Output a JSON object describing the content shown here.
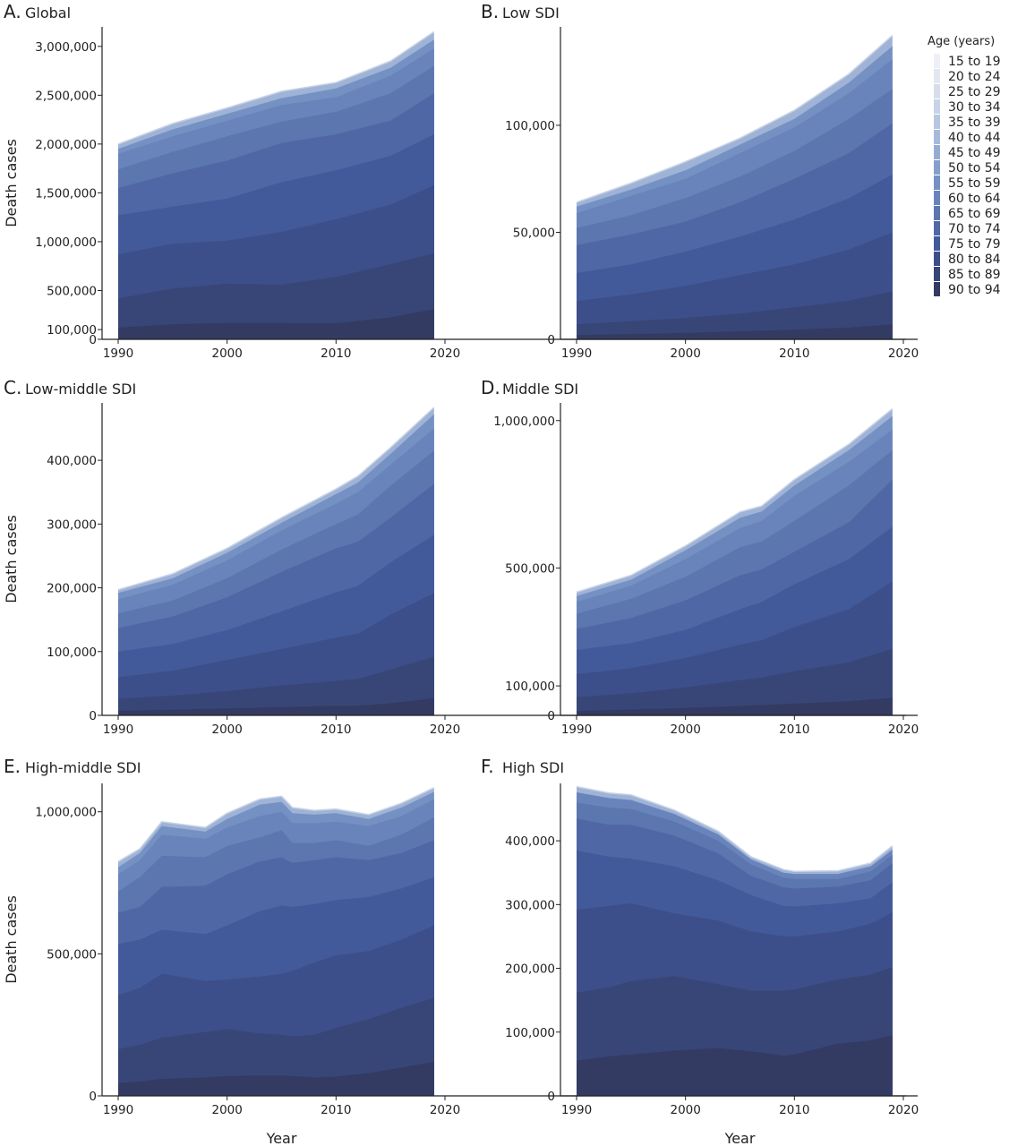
{
  "figure": {
    "x_axis_title": "Year",
    "y_axis_title": "Death cases",
    "legend": {
      "title": "Age (years)",
      "placement": "top-right",
      "entries": [
        {
          "label": "15 to 19",
          "color": "#eef0f6"
        },
        {
          "label": "20 to 24",
          "color": "#e2e7f1"
        },
        {
          "label": "25 to 29",
          "color": "#d6deec"
        },
        {
          "label": "30 to 34",
          "color": "#c8d3e7"
        },
        {
          "label": "35 to 39",
          "color": "#b8c7e0"
        },
        {
          "label": "40 to 44",
          "color": "#a8bad9"
        },
        {
          "label": "45 to 49",
          "color": "#97acd2"
        },
        {
          "label": "50 to 54",
          "color": "#869fca"
        },
        {
          "label": "55 to 59",
          "color": "#7591c3"
        },
        {
          "label": "60 to 64",
          "color": "#6984bb"
        },
        {
          "label": "65 to 69",
          "color": "#5c76b0"
        },
        {
          "label": "70 to 74",
          "color": "#4f68a5"
        },
        {
          "label": "75 to 79",
          "color": "#435a9a"
        },
        {
          "label": "80 to 84",
          "color": "#3d4f8a"
        },
        {
          "label": "85 to 89",
          "color": "#384677"
        },
        {
          "label": "90 to 94",
          "color": "#333b63"
        }
      ]
    }
  },
  "chart_data": [
    {
      "type": "area",
      "stacked": true,
      "letter": "A.",
      "title": "Global",
      "xlabel": "",
      "ylabel": "Death cases",
      "x": [
        1990,
        1995,
        2000,
        2005,
        2010,
        2015,
        2019
      ],
      "xlim": [
        1989,
        2020.5
      ],
      "xticks": [
        "1990",
        "2000",
        "2010",
        "2020"
      ],
      "ylim": [
        0,
        3200000
      ],
      "yticks": [
        {
          "v": 0,
          "label": "0"
        },
        {
          "v": 100000,
          "label": "100,000"
        },
        {
          "v": 500000,
          "label": "500,000"
        },
        {
          "v": 1000000,
          "label": "1,000,000"
        },
        {
          "v": 1500000,
          "label": "1,500,000"
        },
        {
          "v": 2000000,
          "label": "2,000,000"
        },
        {
          "v": 2500000,
          "label": "2,500,000"
        },
        {
          "v": 3000000,
          "label": "3,000,000"
        }
      ],
      "totals": [
        2000000,
        2210000,
        2370000,
        2540000,
        2630000,
        2850000,
        3150000
      ],
      "cumulative_boundaries": {
        "90 to 94": [
          120000,
          155000,
          170000,
          170000,
          165000,
          225000,
          310000
        ],
        "85 to 89": [
          420000,
          520000,
          570000,
          560000,
          640000,
          770000,
          880000
        ],
        "80 to 84": [
          870000,
          980000,
          1010000,
          1100000,
          1230000,
          1380000,
          1580000
        ],
        "75 to 79": [
          1270000,
          1360000,
          1440000,
          1610000,
          1730000,
          1880000,
          2100000
        ],
        "70 to 74": [
          1550000,
          1700000,
          1830000,
          2010000,
          2100000,
          2240000,
          2520000
        ],
        "65 to 69": [
          1740000,
          1920000,
          2080000,
          2230000,
          2330000,
          2520000,
          2800000
        ],
        "60 to 64": [
          1900000,
          2080000,
          2240000,
          2400000,
          2480000,
          2700000,
          2980000
        ],
        "55 to 59": [
          1950000,
          2150000,
          2310000,
          2470000,
          2570000,
          2780000,
          3070000
        ],
        "top": [
          2000000,
          2210000,
          2370000,
          2540000,
          2630000,
          2850000,
          3150000
        ]
      }
    },
    {
      "type": "area",
      "stacked": true,
      "letter": "B.",
      "title": "Low SDI",
      "xlabel": "",
      "ylabel": "",
      "x": [
        1990,
        1995,
        2000,
        2005,
        2010,
        2015,
        2019
      ],
      "xlim": [
        1989,
        2020.5
      ],
      "xticks": [
        "1990",
        "2000",
        "2010",
        "2020"
      ],
      "ylim": [
        0,
        146000
      ],
      "yticks": [
        {
          "v": 0,
          "label": "0"
        },
        {
          "v": 50000,
          "label": "50,000"
        },
        {
          "v": 100000,
          "label": "100,000"
        }
      ],
      "totals": [
        64000,
        73000,
        83000,
        94000,
        107000,
        124000,
        142000
      ],
      "cumulative_boundaries": {
        "90 to 94": [
          2000,
          2500,
          3000,
          3800,
          4500,
          5500,
          7000
        ],
        "85 to 89": [
          7000,
          8500,
          10000,
          12000,
          15000,
          18000,
          22500
        ],
        "80 to 84": [
          18000,
          21000,
          25000,
          30000,
          35000,
          42000,
          50000
        ],
        "75 to 79": [
          31000,
          35000,
          41000,
          48000,
          56000,
          66000,
          77000
        ],
        "70 to 74": [
          44000,
          49000,
          55000,
          64000,
          75000,
          87000,
          101000
        ],
        "65 to 69": [
          52000,
          58000,
          66000,
          76000,
          88000,
          103000,
          117000
        ],
        "60 to 64": [
          59000,
          67000,
          75000,
          87000,
          99000,
          115000,
          131000
        ],
        "55 to 59": [
          62000,
          70000,
          79000,
          91000,
          103000,
          120000,
          137000
        ],
        "top": [
          64000,
          73000,
          83000,
          94000,
          107000,
          124000,
          142000
        ]
      }
    },
    {
      "type": "area",
      "stacked": true,
      "letter": "C.",
      "title": "Low-middle SDI",
      "xlabel": "",
      "ylabel": "Death cases",
      "x": [
        1990,
        1995,
        2000,
        2005,
        2010,
        2012,
        2015,
        2019
      ],
      "xlim": [
        1989,
        2020.5
      ],
      "xticks": [
        "1990",
        "2000",
        "2010",
        "2020"
      ],
      "ylim": [
        0,
        490000
      ],
      "yticks": [
        {
          "v": 0,
          "label": "0"
        },
        {
          "v": 100000,
          "label": "100,000"
        },
        {
          "v": 200000,
          "label": "200,000"
        },
        {
          "v": 300000,
          "label": "300,000"
        },
        {
          "v": 400000,
          "label": "400,000"
        }
      ],
      "totals": [
        197000,
        222000,
        262000,
        310000,
        355000,
        375000,
        420000,
        483000
      ],
      "cumulative_boundaries": {
        "90 to 94": [
          7000,
          9000,
          11000,
          13000,
          15000,
          15000,
          19000,
          27000
        ],
        "85 to 89": [
          26000,
          31000,
          38000,
          47000,
          54000,
          57000,
          72000,
          92000
        ],
        "80 to 84": [
          60000,
          70000,
          87000,
          104000,
          122000,
          128000,
          158000,
          192000
        ],
        "75 to 79": [
          100000,
          112000,
          134000,
          163000,
          193000,
          203000,
          240000,
          283000
        ],
        "70 to 74": [
          137000,
          155000,
          185000,
          225000,
          262000,
          272000,
          310000,
          363000
        ],
        "65 to 69": [
          160000,
          180000,
          215000,
          260000,
          300000,
          315000,
          360000,
          415000
        ],
        "60 to 64": [
          182000,
          205000,
          243000,
          290000,
          332000,
          350000,
          393000,
          450000
        ],
        "55 to 59": [
          192000,
          215000,
          255000,
          302000,
          347000,
          365000,
          410000,
          472000
        ],
        "top": [
          197000,
          222000,
          262000,
          310000,
          355000,
          375000,
          420000,
          483000
        ]
      }
    },
    {
      "type": "area",
      "stacked": true,
      "letter": "D.",
      "title": "Middle SDI",
      "xlabel": "",
      "ylabel": "",
      "x": [
        1990,
        1995,
        2000,
        2005,
        2007,
        2010,
        2015,
        2019
      ],
      "xlim": [
        1989,
        2020.5
      ],
      "xticks": [
        "1990",
        "2000",
        "2010",
        "2020"
      ],
      "ylim": [
        0,
        1060000
      ],
      "yticks": [
        {
          "v": 0,
          "label": "0"
        },
        {
          "v": 100000,
          "label": "100,000"
        },
        {
          "v": 500000,
          "label": "500,000"
        },
        {
          "v": 1000000,
          "label": "1,000,000"
        }
      ],
      "totals": [
        418000,
        475000,
        575000,
        690000,
        710000,
        800000,
        920000,
        1040000
      ],
      "cumulative_boundaries": {
        "90 to 94": [
          15000,
          20000,
          25000,
          32000,
          35000,
          40000,
          48000,
          60000
        ],
        "85 to 89": [
          62000,
          75000,
          95000,
          120000,
          128000,
          150000,
          180000,
          226000
        ],
        "80 to 84": [
          140000,
          160000,
          195000,
          240000,
          255000,
          300000,
          360000,
          455000
        ],
        "75 to 79": [
          222000,
          245000,
          290000,
          360000,
          385000,
          445000,
          530000,
          640000
        ],
        "70 to 74": [
          293000,
          330000,
          390000,
          475000,
          495000,
          555000,
          655000,
          800000
        ],
        "65 to 69": [
          345000,
          395000,
          470000,
          570000,
          590000,
          660000,
          780000,
          900000
        ],
        "60 to 64": [
          385000,
          440000,
          530000,
          635000,
          660000,
          745000,
          860000,
          970000
        ],
        "55 to 59": [
          405000,
          460000,
          560000,
          670000,
          692000,
          780000,
          900000,
          1015000
        ],
        "top": [
          418000,
          475000,
          575000,
          690000,
          710000,
          800000,
          920000,
          1040000
        ]
      }
    },
    {
      "type": "area",
      "stacked": true,
      "letter": "E.",
      "title": "High-middle SDI",
      "xlabel": "Year",
      "ylabel": "Death cases",
      "x": [
        1990,
        1992,
        1994,
        1998,
        2000,
        2003,
        2005,
        2006,
        2008,
        2010,
        2013,
        2016,
        2019
      ],
      "xlim": [
        1989,
        2020.5
      ],
      "xticks": [
        "1990",
        "2000",
        "2010",
        "2020"
      ],
      "ylim": [
        0,
        1100000
      ],
      "yticks": [
        {
          "v": 0,
          "label": "0"
        },
        {
          "v": 500000,
          "label": "500,000"
        },
        {
          "v": 1000000,
          "label": "1,000,000"
        }
      ],
      "totals": [
        825000,
        870000,
        965000,
        945000,
        995000,
        1045000,
        1055000,
        1015000,
        1005000,
        1010000,
        990000,
        1030000,
        1085000
      ],
      "cumulative_boundaries": {
        "90 to 94": [
          45000,
          50000,
          60000,
          65000,
          70000,
          72000,
          72000,
          70000,
          65000,
          68000,
          80000,
          100000,
          120000
        ],
        "85 to 89": [
          165000,
          180000,
          205000,
          225000,
          235000,
          220000,
          215000,
          210000,
          215000,
          240000,
          270000,
          310000,
          345000
        ],
        "80 to 84": [
          355000,
          380000,
          430000,
          405000,
          410000,
          420000,
          430000,
          440000,
          470000,
          495000,
          510000,
          550000,
          600000
        ],
        "75 to 79": [
          535000,
          550000,
          585000,
          570000,
          600000,
          650000,
          670000,
          665000,
          675000,
          690000,
          700000,
          730000,
          770000
        ],
        "70 to 74": [
          645000,
          665000,
          735000,
          740000,
          780000,
          825000,
          840000,
          820000,
          830000,
          840000,
          830000,
          855000,
          900000
        ],
        "65 to 69": [
          720000,
          770000,
          845000,
          840000,
          880000,
          910000,
          935000,
          890000,
          890000,
          900000,
          880000,
          920000,
          980000
        ],
        "60 to 64": [
          780000,
          830000,
          920000,
          905000,
          945000,
          985000,
          1000000,
          960000,
          960000,
          965000,
          950000,
          985000,
          1045000
        ],
        "55 to 59": [
          805000,
          855000,
          950000,
          930000,
          975000,
          1025000,
          1035000,
          995000,
          990000,
          995000,
          975000,
          1015000,
          1070000
        ],
        "top": [
          825000,
          870000,
          965000,
          945000,
          995000,
          1045000,
          1055000,
          1015000,
          1005000,
          1010000,
          990000,
          1030000,
          1085000
        ]
      }
    },
    {
      "type": "area",
      "stacked": true,
      "letter": "F.",
      "title": "High SDI",
      "xlabel": "Year",
      "ylabel": "",
      "x": [
        1990,
        1993,
        1995,
        1999,
        2003,
        2006,
        2009,
        2010,
        2014,
        2017,
        2019
      ],
      "xlim": [
        1989,
        2020.5
      ],
      "xticks": [
        "1990",
        "2000",
        "2010",
        "2020"
      ],
      "ylim": [
        0,
        490000
      ],
      "yticks": [
        {
          "v": 0,
          "label": "0"
        },
        {
          "v": 100000,
          "label": "100,000"
        },
        {
          "v": 200000,
          "label": "200,000"
        },
        {
          "v": 300000,
          "label": "300,000"
        },
        {
          "v": 400000,
          "label": "400,000"
        }
      ],
      "totals": [
        485000,
        475000,
        472000,
        448000,
        415000,
        375000,
        355000,
        352000,
        353000,
        365000,
        392000
      ],
      "cumulative_boundaries": {
        "90 to 94": [
          55000,
          62000,
          65000,
          71000,
          75000,
          70000,
          63000,
          65000,
          82000,
          87000,
          95000
        ],
        "85 to 89": [
          162000,
          170000,
          180000,
          188000,
          175000,
          165000,
          165000,
          167000,
          183000,
          190000,
          202000
        ],
        "80 to 84": [
          292000,
          298000,
          302000,
          286000,
          275000,
          258000,
          250000,
          250000,
          258000,
          270000,
          288000
        ],
        "75 to 79": [
          385000,
          375000,
          372000,
          360000,
          338000,
          315000,
          298000,
          297000,
          302000,
          310000,
          335000
        ],
        "70 to 74": [
          435000,
          425000,
          425000,
          408000,
          380000,
          345000,
          327000,
          325000,
          328000,
          338000,
          365000
        ],
        "65 to 69": [
          460000,
          452000,
          450000,
          430000,
          400000,
          363000,
          342000,
          340000,
          340000,
          352000,
          378000
        ],
        "60 to 64": [
          476000,
          467000,
          464000,
          442000,
          410000,
          371000,
          350000,
          348000,
          348000,
          360000,
          386000
        ],
        "top": [
          485000,
          475000,
          472000,
          448000,
          415000,
          375000,
          355000,
          352000,
          353000,
          365000,
          392000
        ]
      }
    }
  ]
}
